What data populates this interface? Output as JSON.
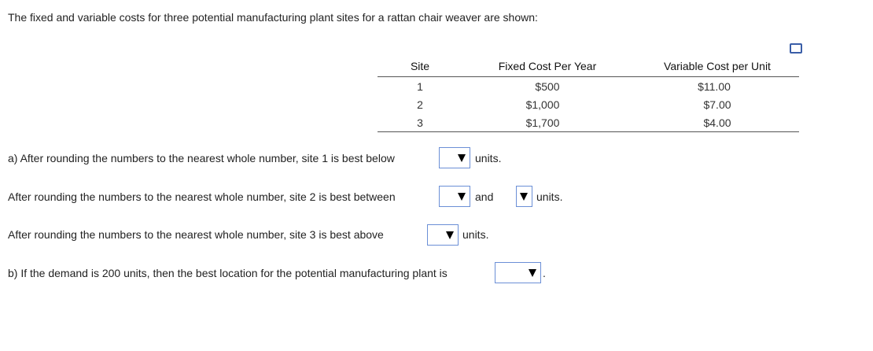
{
  "intro": "The fixed and variable costs for three potential manufacturing plant sites for a rattan chair weaver are shown:",
  "table": {
    "headers": [
      "Site",
      "Fixed Cost Per Year",
      "Variable Cost per Unit"
    ],
    "rows": [
      [
        "1",
        "$500",
        "$11.00"
      ],
      [
        "2",
        "$1,000",
        "$7.00"
      ],
      [
        "3",
        "$1,700",
        "$4.00"
      ]
    ]
  },
  "questions": [
    {
      "prompt": "a) After rounding the numbers to the nearest whole number, site 1 is best below",
      "after": "units."
    },
    {
      "prompt": "After rounding the numbers to the nearest whole number, site 2 is best between",
      "middle": "and",
      "after": "units."
    },
    {
      "prompt": "After rounding the numbers to the nearest whole number, site 3 is best above",
      "after": "units."
    },
    {
      "prompt": "b) If the demand is 200 units, then the best location for the potential manufacturing plant is",
      "after": "."
    }
  ]
}
